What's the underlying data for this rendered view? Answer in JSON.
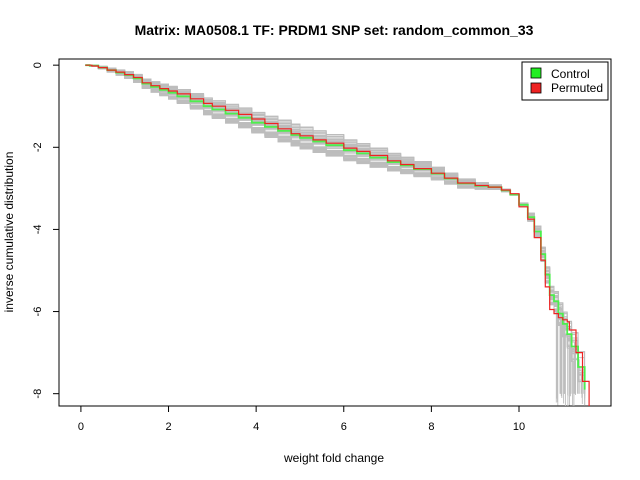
{
  "chart_data": {
    "type": "line",
    "title": "Matrix: MA0508.1 TF: PRDM1 SNP set: random_common_33",
    "xlabel": "weight fold change",
    "ylabel": "inverse cumulative distribution",
    "xlim": [
      -0.5,
      12.1
    ],
    "ylim": [
      -8.3,
      0.15
    ],
    "xticks": [
      0,
      2,
      4,
      6,
      8,
      10
    ],
    "yticks": [
      0,
      -2,
      -4,
      -6,
      -8
    ],
    "grid": false,
    "legend": {
      "position": "top-right",
      "entries": [
        {
          "label": "Control",
          "color": "#22ee22"
        },
        {
          "label": "Permuted",
          "color": "#ee2222"
        }
      ]
    },
    "series": [
      {
        "name": "Control",
        "color": "#4dee4d",
        "points": [
          [
            0.1,
            0
          ],
          [
            0.2,
            -0.01
          ],
          [
            0.4,
            -0.06
          ],
          [
            0.6,
            -0.12
          ],
          [
            0.8,
            -0.18
          ],
          [
            1.0,
            -0.24
          ],
          [
            1.2,
            -0.32
          ],
          [
            1.4,
            -0.45
          ],
          [
            1.6,
            -0.53
          ],
          [
            1.8,
            -0.6
          ],
          [
            2.0,
            -0.67
          ],
          [
            2.2,
            -0.76
          ],
          [
            2.5,
            -0.88
          ],
          [
            2.8,
            -1.0
          ],
          [
            3.0,
            -1.08
          ],
          [
            3.3,
            -1.18
          ],
          [
            3.6,
            -1.28
          ],
          [
            3.9,
            -1.4
          ],
          [
            4.2,
            -1.5
          ],
          [
            4.5,
            -1.6
          ],
          [
            4.8,
            -1.7
          ],
          [
            5.0,
            -1.77
          ],
          [
            5.3,
            -1.86
          ],
          [
            5.6,
            -1.95
          ],
          [
            6.0,
            -2.07
          ],
          [
            6.3,
            -2.15
          ],
          [
            6.6,
            -2.25
          ],
          [
            7.0,
            -2.36
          ],
          [
            7.3,
            -2.44
          ],
          [
            7.6,
            -2.53
          ],
          [
            8.0,
            -2.64
          ],
          [
            8.3,
            -2.76
          ],
          [
            8.6,
            -2.88
          ],
          [
            9.0,
            -2.94
          ],
          [
            9.3,
            -2.97
          ],
          [
            9.6,
            -3.05
          ],
          [
            9.8,
            -3.15
          ],
          [
            10.0,
            -3.4
          ],
          [
            10.2,
            -3.7
          ],
          [
            10.35,
            -4.05
          ],
          [
            10.5,
            -4.6
          ],
          [
            10.6,
            -5.1
          ],
          [
            10.7,
            -5.6
          ],
          [
            10.8,
            -5.75
          ],
          [
            10.9,
            -6.05
          ],
          [
            11.0,
            -6.3
          ],
          [
            11.1,
            -6.55
          ],
          [
            11.2,
            -6.85
          ],
          [
            11.35,
            -7.35
          ],
          [
            11.5,
            -7.9
          ]
        ]
      },
      {
        "name": "Permuted",
        "color": "#ee2222",
        "points": [
          [
            0.1,
            0
          ],
          [
            0.25,
            -0.02
          ],
          [
            0.4,
            -0.06
          ],
          [
            0.6,
            -0.12
          ],
          [
            0.8,
            -0.17
          ],
          [
            1.0,
            -0.23
          ],
          [
            1.2,
            -0.3
          ],
          [
            1.4,
            -0.43
          ],
          [
            1.6,
            -0.5
          ],
          [
            1.8,
            -0.57
          ],
          [
            2.0,
            -0.63
          ],
          [
            2.2,
            -0.7
          ],
          [
            2.5,
            -0.82
          ],
          [
            2.8,
            -0.93
          ],
          [
            3.0,
            -1.0
          ],
          [
            3.3,
            -1.1
          ],
          [
            3.6,
            -1.2
          ],
          [
            3.9,
            -1.31
          ],
          [
            4.2,
            -1.42
          ],
          [
            4.5,
            -1.55
          ],
          [
            4.8,
            -1.67
          ],
          [
            5.0,
            -1.72
          ],
          [
            5.3,
            -1.82
          ],
          [
            5.6,
            -1.9
          ],
          [
            6.0,
            -2.02
          ],
          [
            6.3,
            -2.1
          ],
          [
            6.6,
            -2.2
          ],
          [
            7.0,
            -2.33
          ],
          [
            7.3,
            -2.42
          ],
          [
            7.6,
            -2.52
          ],
          [
            8.0,
            -2.63
          ],
          [
            8.3,
            -2.75
          ],
          [
            8.6,
            -2.87
          ],
          [
            9.0,
            -2.93
          ],
          [
            9.3,
            -2.97
          ],
          [
            9.6,
            -3.04
          ],
          [
            9.8,
            -3.13
          ],
          [
            10.0,
            -3.45
          ],
          [
            10.2,
            -3.75
          ],
          [
            10.35,
            -4.2
          ],
          [
            10.5,
            -4.75
          ],
          [
            10.6,
            -5.4
          ],
          [
            10.7,
            -5.95
          ],
          [
            10.8,
            -6.05
          ],
          [
            10.9,
            -6.15
          ],
          [
            11.0,
            -6.2
          ],
          [
            11.1,
            -6.25
          ],
          [
            11.15,
            -6.45
          ],
          [
            11.3,
            -7.0
          ],
          [
            11.45,
            -7.7
          ],
          [
            11.6,
            -8.3
          ]
        ]
      }
    ],
    "background_series": {
      "name": "Permutation background",
      "color": "#bdbdbd",
      "count": 50
    }
  }
}
